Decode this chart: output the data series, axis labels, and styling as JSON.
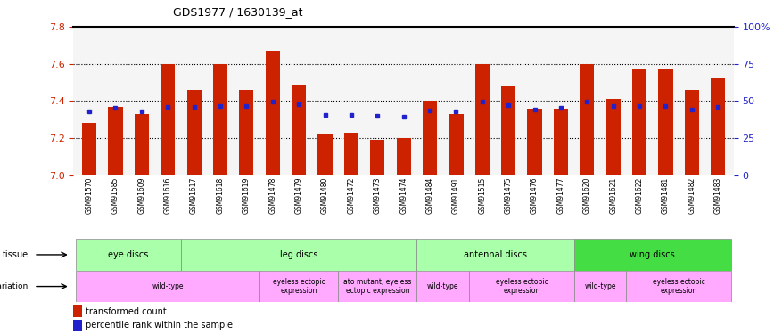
{
  "title": "GDS1977 / 1630139_at",
  "samples": [
    "GSM91570",
    "GSM91585",
    "GSM91609",
    "GSM91616",
    "GSM91617",
    "GSM91618",
    "GSM91619",
    "GSM91478",
    "GSM91479",
    "GSM91480",
    "GSM91472",
    "GSM91473",
    "GSM91474",
    "GSM91484",
    "GSM91491",
    "GSM91515",
    "GSM91475",
    "GSM91476",
    "GSM91477",
    "GSM91620",
    "GSM91621",
    "GSM91622",
    "GSM91481",
    "GSM91482",
    "GSM91483"
  ],
  "red_values": [
    7.28,
    7.37,
    7.33,
    7.6,
    7.46,
    7.6,
    7.46,
    7.67,
    7.49,
    7.22,
    7.23,
    7.19,
    7.2,
    7.4,
    7.33,
    7.6,
    7.48,
    7.36,
    7.36,
    7.6,
    7.41,
    7.57,
    7.57,
    7.46,
    7.52
  ],
  "blue_values": [
    7.345,
    7.365,
    7.345,
    7.37,
    7.37,
    7.375,
    7.375,
    7.395,
    7.385,
    7.325,
    7.325,
    7.32,
    7.315,
    7.35,
    7.345,
    7.395,
    7.38,
    7.355,
    7.365,
    7.395,
    7.375,
    7.375,
    7.375,
    7.355,
    7.37
  ],
  "ylim_left": [
    7.0,
    7.8
  ],
  "ylim_right": [
    0,
    100
  ],
  "yticks_left": [
    7.0,
    7.2,
    7.4,
    7.6,
    7.8
  ],
  "yticks_right": [
    0,
    25,
    50,
    75,
    100
  ],
  "ytick_right_labels": [
    "0",
    "25",
    "50",
    "75",
    "100%"
  ],
  "tissue_groups": [
    {
      "label": "eye discs",
      "start": 0,
      "end": 3
    },
    {
      "label": "leg discs",
      "start": 4,
      "end": 12
    },
    {
      "label": "antennal discs",
      "start": 13,
      "end": 18
    },
    {
      "label": "wing discs",
      "start": 19,
      "end": 24
    }
  ],
  "genotype_groups": [
    {
      "label": "wild-type",
      "start": 0,
      "end": 6
    },
    {
      "label": "eyeless ectopic\nexpression",
      "start": 7,
      "end": 9
    },
    {
      "label": "ato mutant, eyeless\nectopic expression",
      "start": 10,
      "end": 12
    },
    {
      "label": "wild-type",
      "start": 13,
      "end": 14
    },
    {
      "label": "eyeless ectopic\nexpression",
      "start": 15,
      "end": 18
    },
    {
      "label": "wild-type",
      "start": 19,
      "end": 20
    },
    {
      "label": "eyeless ectopic\nexpression",
      "start": 21,
      "end": 24
    }
  ],
  "bar_color": "#cc2200",
  "blue_color": "#2222cc",
  "axis_color_left": "#cc2200",
  "axis_color_right": "#2222cc",
  "tissue_light_color": "#aaffaa",
  "tissue_dark_color": "#44dd44",
  "geno_color": "#ffaaff",
  "grid_dotted_color": "#333333",
  "plot_bg": "#f5f5f5",
  "xlabel_bg": "#dddddd"
}
